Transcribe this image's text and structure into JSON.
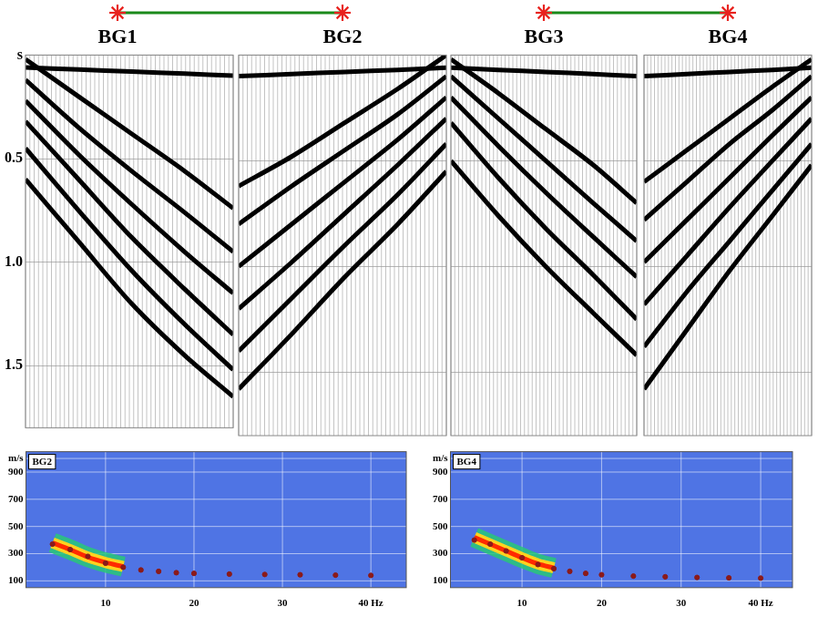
{
  "chart_data": [
    {
      "type": "line",
      "title": "BG1",
      "x": [
        0,
        12,
        24,
        36,
        47
      ],
      "series": [
        {
          "color": "#000000",
          "values": [
            0.06,
            0.07,
            0.08,
            0.09,
            0.1
          ]
        },
        {
          "color": "#000000",
          "values": [
            0.02,
            0.2,
            0.38,
            0.56,
            0.74
          ]
        },
        {
          "color": "#000000",
          "values": [
            0.12,
            0.35,
            0.56,
            0.76,
            0.95
          ]
        },
        {
          "color": "#000000",
          "values": [
            0.22,
            0.48,
            0.72,
            0.95,
            1.15
          ]
        },
        {
          "color": "#000000",
          "values": [
            0.32,
            0.6,
            0.88,
            1.13,
            1.35
          ]
        },
        {
          "color": "#000000",
          "values": [
            0.45,
            0.75,
            1.04,
            1.3,
            1.52
          ]
        },
        {
          "color": "#000000",
          "values": [
            0.6,
            0.9,
            1.2,
            1.45,
            1.65
          ]
        }
      ],
      "xlim": [
        0,
        47
      ],
      "ylim": [
        1.8,
        0
      ],
      "yticks": [
        {
          "value": 0,
          "label": "s"
        },
        0.5,
        {
          "value": 1,
          "label": "1.0"
        },
        1.5
      ],
      "grid": true,
      "tick_labels": "y"
    },
    {
      "type": "line",
      "title": "BG2",
      "x": [
        0,
        12,
        24,
        36,
        47
      ],
      "series": [
        {
          "color": "#000000",
          "values": [
            0.1,
            0.09,
            0.08,
            0.07,
            0.06
          ]
        },
        {
          "color": "#000000",
          "values": [
            0.62,
            0.48,
            0.32,
            0.16,
            0.0
          ]
        },
        {
          "color": "#000000",
          "values": [
            0.8,
            0.62,
            0.45,
            0.28,
            0.1
          ]
        },
        {
          "color": "#000000",
          "values": [
            1.0,
            0.8,
            0.6,
            0.4,
            0.2
          ]
        },
        {
          "color": "#000000",
          "values": [
            1.2,
            0.98,
            0.75,
            0.52,
            0.3
          ]
        },
        {
          "color": "#000000",
          "values": [
            1.4,
            1.15,
            0.9,
            0.66,
            0.42
          ]
        },
        {
          "color": "#000000",
          "values": [
            1.58,
            1.32,
            1.05,
            0.8,
            0.55
          ]
        }
      ],
      "xlim": [
        0,
        47
      ],
      "ylim": [
        1.8,
        0
      ],
      "yticks": [
        0,
        0.5,
        1,
        1.5
      ],
      "grid": true,
      "tick_labels": false
    },
    {
      "type": "line",
      "title": "BG3",
      "x": [
        0,
        12,
        24,
        36,
        47
      ],
      "series": [
        {
          "color": "#000000",
          "values": [
            0.06,
            0.07,
            0.08,
            0.09,
            0.1
          ]
        },
        {
          "color": "#000000",
          "values": [
            0.02,
            0.18,
            0.35,
            0.52,
            0.7
          ]
        },
        {
          "color": "#000000",
          "values": [
            0.1,
            0.3,
            0.5,
            0.7,
            0.88
          ]
        },
        {
          "color": "#000000",
          "values": [
            0.2,
            0.43,
            0.65,
            0.86,
            1.05
          ]
        },
        {
          "color": "#000000",
          "values": [
            0.32,
            0.58,
            0.82,
            1.04,
            1.25
          ]
        },
        {
          "color": "#000000",
          "values": [
            0.5,
            0.76,
            1.0,
            1.22,
            1.42
          ]
        }
      ],
      "xlim": [
        0,
        47
      ],
      "ylim": [
        1.8,
        0
      ],
      "yticks": [
        0,
        0.5,
        1,
        1.5
      ],
      "grid": true,
      "tick_labels": false
    },
    {
      "type": "line",
      "title": "BG4",
      "x": [
        0,
        12,
        24,
        36,
        47
      ],
      "series": [
        {
          "color": "#000000",
          "values": [
            0.1,
            0.09,
            0.08,
            0.07,
            0.06
          ]
        },
        {
          "color": "#000000",
          "values": [
            0.6,
            0.45,
            0.3,
            0.15,
            0.02
          ]
        },
        {
          "color": "#000000",
          "values": [
            0.78,
            0.6,
            0.42,
            0.26,
            0.1
          ]
        },
        {
          "color": "#000000",
          "values": [
            0.98,
            0.78,
            0.58,
            0.38,
            0.2
          ]
        },
        {
          "color": "#000000",
          "values": [
            1.18,
            0.95,
            0.72,
            0.5,
            0.3
          ]
        },
        {
          "color": "#000000",
          "values": [
            1.38,
            1.12,
            0.88,
            0.64,
            0.42
          ]
        },
        {
          "color": "#000000",
          "values": [
            1.58,
            1.3,
            1.02,
            0.76,
            0.52
          ]
        }
      ],
      "xlim": [
        0,
        47
      ],
      "ylim": [
        1.8,
        0
      ],
      "yticks": [
        0,
        0.5,
        1,
        1.5
      ],
      "grid": true,
      "tick_labels": false
    },
    {
      "type": "line",
      "title": "BG2",
      "x": [
        4,
        6,
        8,
        10,
        12,
        14,
        16,
        18,
        20,
        24,
        28,
        32,
        36,
        40
      ],
      "series": [
        {
          "type": "line",
          "color": "#ff2a00",
          "values": [
            380,
            330,
            275,
            235,
            205,
            null,
            null,
            null,
            null,
            null,
            null,
            null,
            null,
            null
          ]
        },
        {
          "type": "scatter",
          "marker": "circle",
          "color": "#8b1a1a",
          "values": [
            370,
            330,
            280,
            230,
            200,
            180,
            170,
            160,
            155,
            150,
            147,
            145,
            142,
            140
          ]
        }
      ],
      "xlim": [
        1,
        44
      ],
      "ylim": [
        50,
        1050
      ],
      "xticks": [
        10,
        20,
        30,
        {
          "value": 40,
          "label": "40 Hz"
        }
      ],
      "yticks": [
        100,
        300,
        500,
        700,
        900,
        {
          "value": 1000,
          "label": "m/s"
        }
      ],
      "grid": true
    },
    {
      "type": "line",
      "title": "BG4",
      "x": [
        4,
        6,
        8,
        10,
        12,
        14,
        16,
        18,
        20,
        24,
        28,
        32,
        36,
        40
      ],
      "series": [
        {
          "type": "line",
          "color": "#ff2a00",
          "values": [
            420,
            370,
            320,
            270,
            225,
            195,
            null,
            null,
            null,
            null,
            null,
            null,
            null,
            null
          ]
        },
        {
          "type": "scatter",
          "marker": "circle",
          "color": "#8b1a1a",
          "values": [
            400,
            370,
            320,
            270,
            220,
            190,
            170,
            155,
            145,
            135,
            130,
            125,
            122,
            120
          ]
        }
      ],
      "xlim": [
        1,
        44
      ],
      "ylim": [
        50,
        1050
      ],
      "xticks": [
        10,
        20,
        30,
        {
          "value": 40,
          "label": "40 Hz"
        }
      ],
      "yticks": [
        100,
        300,
        500,
        700,
        900,
        {
          "value": 1000,
          "label": "m/s"
        }
      ],
      "grid": true
    }
  ]
}
